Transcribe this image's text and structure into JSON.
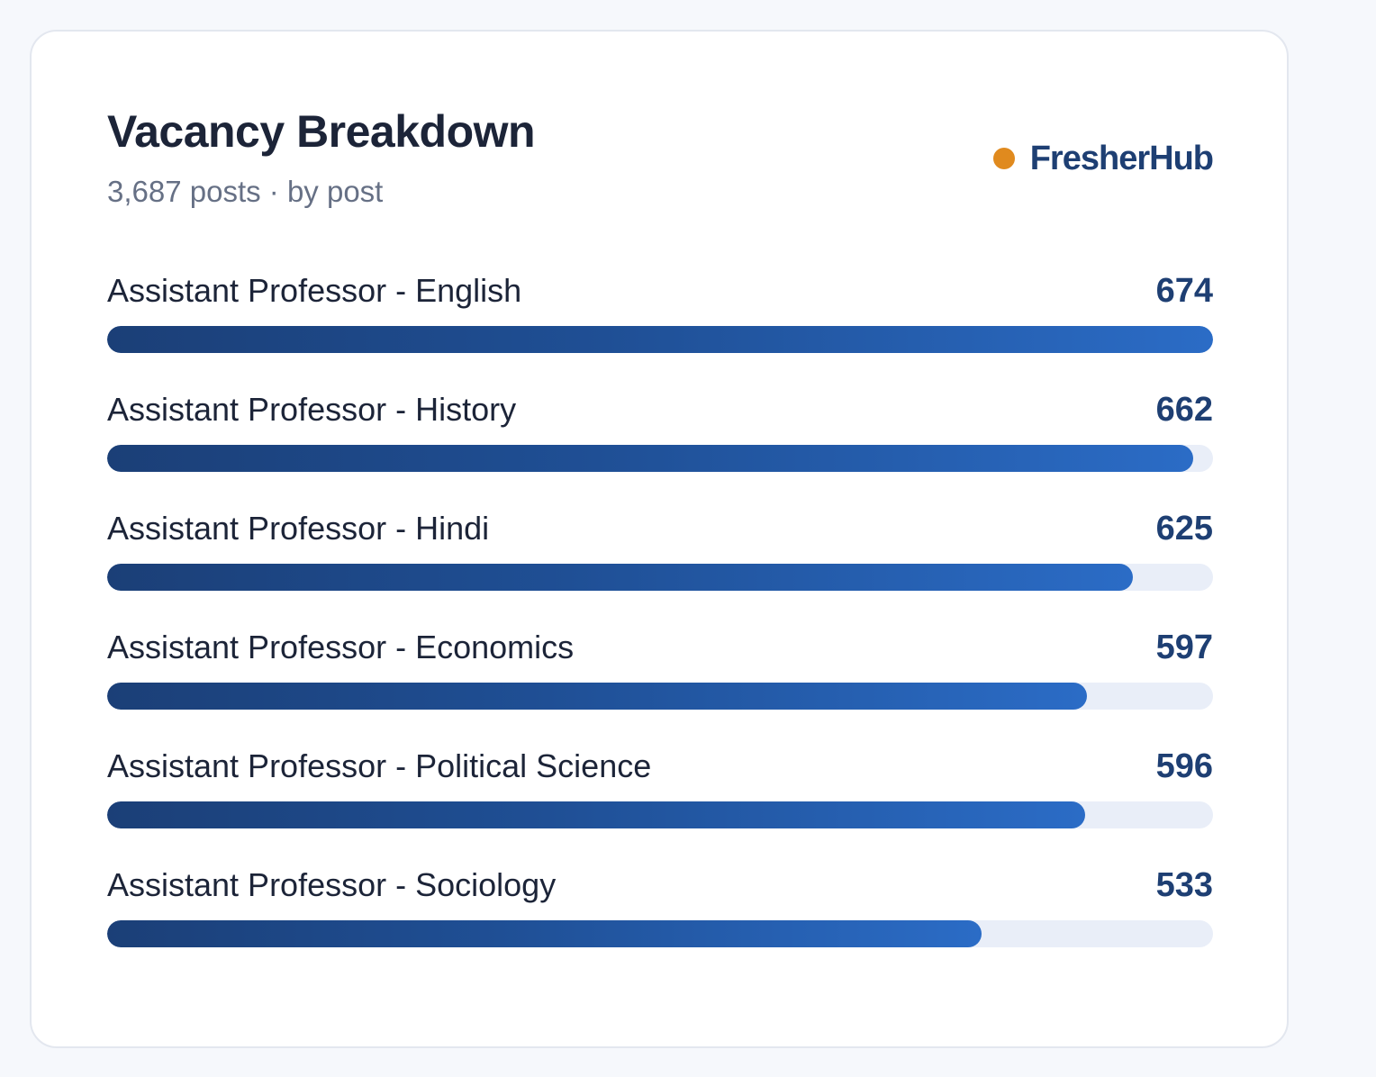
{
  "card": {
    "title": "Vacancy Breakdown",
    "subtitle": "3,687 posts · by post",
    "brand": {
      "name": "FresherHub",
      "dot_color": "#e08a1e",
      "text_color": "#1e3f73"
    }
  },
  "chart_data": {
    "type": "bar",
    "orientation": "horizontal",
    "categories": [
      "Assistant Professor - English",
      "Assistant Professor - History",
      "Assistant Professor - Hindi",
      "Assistant Professor - Economics",
      "Assistant Professor - Political Science",
      "Assistant Professor - Sociology"
    ],
    "values": [
      674,
      662,
      625,
      597,
      596,
      533
    ],
    "value_labels": [
      "674",
      "662",
      "625",
      "597",
      "596",
      "533"
    ],
    "xlim": [
      0,
      674
    ],
    "grid": false,
    "bar_gradient": [
      "#1b3f77",
      "#2b6cc6"
    ],
    "track_color": "#e9eef8"
  }
}
